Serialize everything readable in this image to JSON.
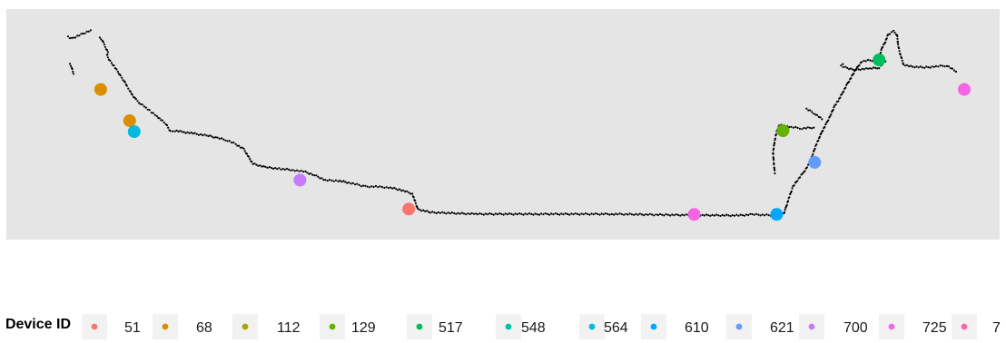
{
  "chart_data": {
    "type": "scatter",
    "panel_background": "#e5e5e5",
    "grid": false,
    "axes_visible": false,
    "xlim": [
      0,
      1000
    ],
    "ylim": [
      0,
      1000
    ],
    "track": {
      "color": "#000000",
      "paths": [
        [
          [
            55,
            912
          ],
          [
            58,
            900
          ],
          [
            60,
            880
          ],
          [
            62,
            862
          ],
          [
            64,
            845
          ],
          [
            63,
            828
          ],
          [
            65,
            810
          ],
          [
            68,
            790
          ],
          [
            72,
            770
          ],
          [
            75,
            750
          ],
          [
            78,
            728
          ],
          [
            82,
            705
          ],
          [
            85,
            680
          ],
          [
            88,
            660
          ],
          [
            91,
            638
          ],
          [
            95,
            615
          ],
          [
            100,
            595
          ],
          [
            106,
            575
          ],
          [
            112,
            555
          ],
          [
            118,
            535
          ],
          [
            124,
            512
          ],
          [
            128,
            497
          ],
          [
            133,
            462
          ],
          [
            138,
            465
          ],
          [
            148,
            458
          ],
          [
            160,
            450
          ],
          [
            175,
            440
          ],
          [
            185,
            430
          ],
          [
            196,
            418
          ],
          [
            205,
            400
          ],
          [
            214,
            375
          ],
          [
            224,
            305
          ],
          [
            238,
            288
          ],
          [
            255,
            280
          ],
          [
            268,
            275
          ],
          [
            282,
            265
          ],
          [
            292,
            250
          ],
          [
            304,
            225
          ],
          [
            318,
            223
          ],
          [
            330,
            214
          ],
          [
            348,
            195
          ],
          [
            362,
            194
          ],
          [
            376,
            189
          ],
          [
            388,
            178
          ],
          [
            400,
            160
          ],
          [
            406,
            85
          ],
          [
            420,
            70
          ],
          [
            470,
            62
          ],
          [
            540,
            62
          ],
          [
            620,
            62
          ],
          [
            680,
            58
          ],
          [
            760,
            55
          ],
          [
            775,
            60
          ],
          [
            800,
            55
          ],
          [
            810,
            66
          ],
          [
            812,
            90
          ],
          [
            816,
            145
          ],
          [
            820,
            195
          ],
          [
            825,
            225
          ],
          [
            832,
            265
          ],
          [
            838,
            305
          ],
          [
            842,
            352
          ],
          [
            845,
            390
          ],
          [
            848,
            420
          ],
          [
            852,
            460
          ],
          [
            857,
            500
          ],
          [
            862,
            545
          ],
          [
            866,
            585
          ],
          [
            870,
            610
          ],
          [
            875,
            650
          ],
          [
            880,
            690
          ],
          [
            884,
            720
          ],
          [
            888,
            752
          ],
          [
            896,
            800
          ],
          [
            905,
            805
          ],
          [
            912,
            805
          ],
          [
            915,
            820
          ],
          [
            918,
            862
          ],
          [
            922,
            895
          ],
          [
            925,
            930
          ],
          [
            931,
            945
          ],
          [
            935,
            928
          ],
          [
            936,
            880
          ],
          [
            938,
            840
          ],
          [
            942,
            785
          ],
          [
            950,
            775
          ],
          [
            965,
            770
          ],
          [
            978,
            775
          ],
          [
            990,
            780
          ],
          [
            1000,
            750
          ]
        ],
        [
          [
            800,
            260
          ],
          [
            799,
            300
          ],
          [
            798,
            360
          ],
          [
            800,
            420
          ],
          [
            802,
            460
          ],
          [
            805,
            492
          ],
          [
            818,
            482
          ],
          [
            830,
            476
          ],
          [
            843,
            480
          ]
        ],
        [
          [
            835,
            570
          ],
          [
            845,
            545
          ],
          [
            852,
            520
          ]
        ],
        [
          [
            875,
            790
          ],
          [
            873,
            780
          ],
          [
            878,
            770
          ],
          [
            888,
            760
          ],
          [
            905,
            765
          ],
          [
            915,
            770
          ],
          [
            922,
            800
          ]
        ],
        [
          [
            20,
            920
          ],
          [
            24,
            910
          ],
          [
            45,
            950
          ]
        ],
        [
          [
            22,
            785
          ],
          [
            24,
            770
          ],
          [
            26,
            740
          ]
        ]
      ]
    },
    "points": [
      {
        "device": "51",
        "x": 396,
        "y": 86
      },
      {
        "device": "68",
        "x": 56,
        "y": 664
      },
      {
        "device": "68",
        "x": 88,
        "y": 513
      },
      {
        "device": "129",
        "x": 809,
        "y": 465
      },
      {
        "device": "517",
        "x": 915,
        "y": 807
      },
      {
        "device": "564",
        "x": 93,
        "y": 460
      },
      {
        "device": "610",
        "x": 802,
        "y": 60
      },
      {
        "device": "621",
        "x": 844,
        "y": 312
      },
      {
        "device": "700",
        "x": 276,
        "y": 226
      },
      {
        "device": "725",
        "x": 711,
        "y": 60
      },
      {
        "device": "725",
        "x": 1009,
        "y": 664
      }
    ],
    "legend": {
      "title": "Device ID",
      "position": "bottom",
      "entries": [
        {
          "label": "51",
          "color": "#F8766D"
        },
        {
          "label": "68",
          "color": "#DB8E00"
        },
        {
          "label": "112",
          "color": "#AEA200"
        },
        {
          "label": "129",
          "color": "#64B200"
        },
        {
          "label": "517",
          "color": "#00BD5C"
        },
        {
          "label": "548",
          "color": "#00C1A7"
        },
        {
          "label": "564",
          "color": "#00BADE"
        },
        {
          "label": "610",
          "color": "#00A6FF"
        },
        {
          "label": "621",
          "color": "#619CFF"
        },
        {
          "label": "700",
          "color": "#C77CFF"
        },
        {
          "label": "725",
          "color": "#F564E3"
        },
        {
          "label": "7",
          "color": "#FF64B0"
        }
      ]
    },
    "device_colors": {
      "51": "#F8766D",
      "68": "#DB8E00",
      "112": "#AEA200",
      "129": "#64B200",
      "517": "#00BD5C",
      "548": "#00C1A7",
      "564": "#00BADE",
      "610": "#00A6FF",
      "621": "#619CFF",
      "700": "#C77CFF",
      "725": "#F564E3"
    }
  }
}
